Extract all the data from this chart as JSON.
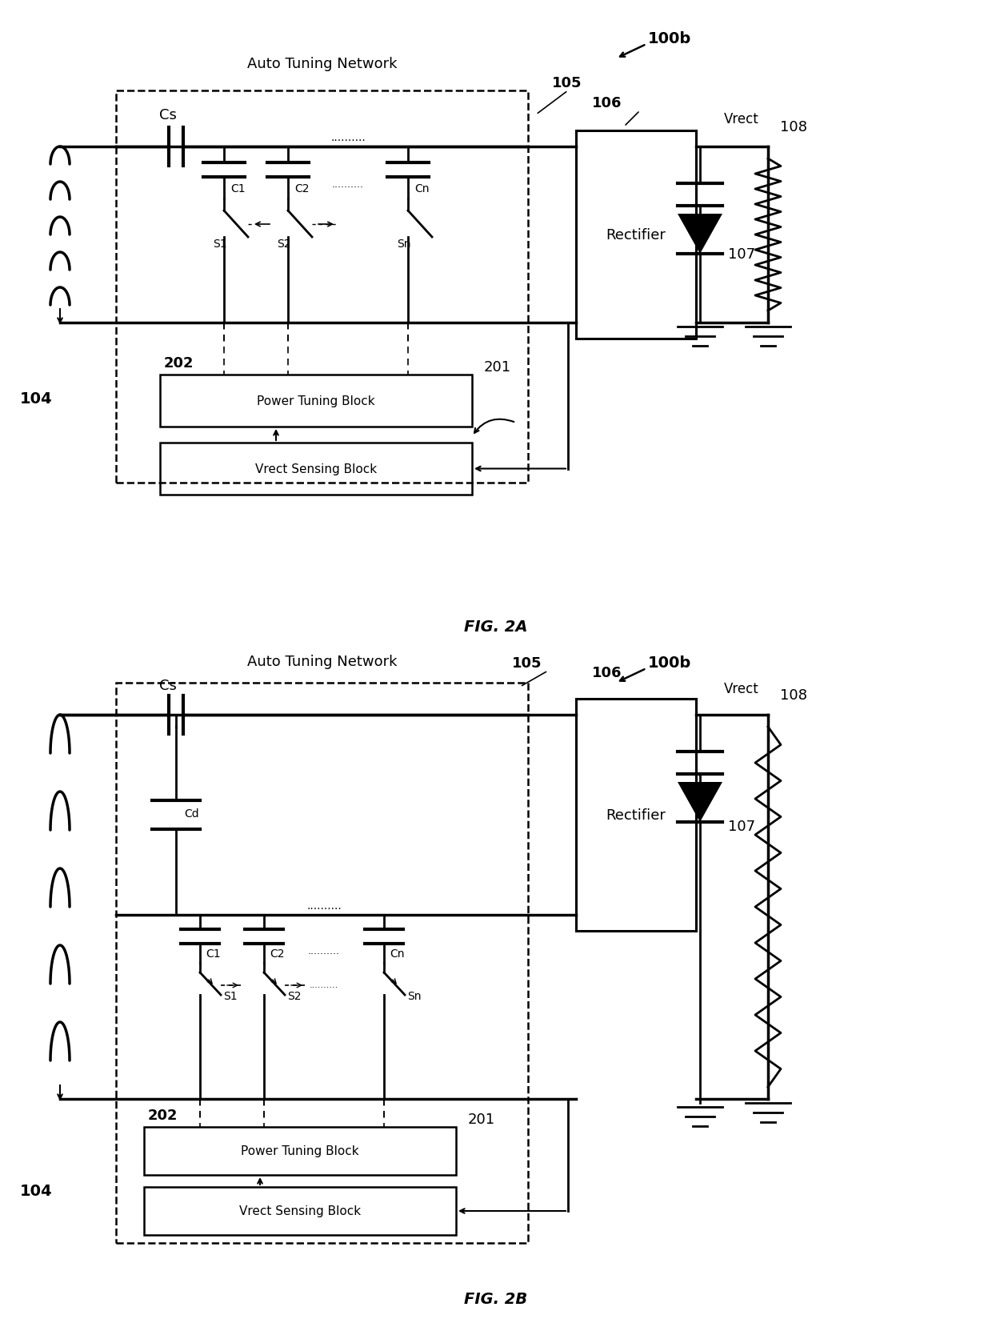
{
  "bg_color": "#ffffff",
  "fig_width": 12.4,
  "fig_height": 16.74,
  "fig2a_label": "FIG. 2A",
  "fig2b_label": "FIG. 2B",
  "label_100b": "100b",
  "label_105": "105",
  "label_106": "106",
  "label_107": "107",
  "label_108": "108",
  "label_104": "104",
  "label_202": "202",
  "label_201": "201",
  "label_Cs": "Cs",
  "label_C1": "C1",
  "label_C2": "C2",
  "label_Cn": "Cn",
  "label_S1": "S1",
  "label_S2": "S2",
  "label_Sn": "Sn",
  "label_Cd": "Cd",
  "label_Vrect": "Vrect",
  "label_Rectifier": "Rectifier",
  "label_AutoTuning": "Auto Tuning Network",
  "label_PowerTuning": "Power Tuning Block",
  "label_VrectSensing": "Vrect Sensing Block"
}
